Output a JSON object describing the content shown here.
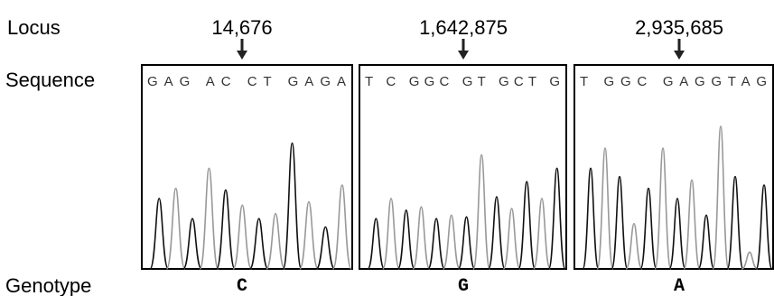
{
  "labels": {
    "locus": "Locus",
    "sequence": "Sequence",
    "genotype": "Genotype"
  },
  "panels": [
    {
      "locus": "14,676",
      "sequence": "GAG AC CT GAGA",
      "genotype": "C"
    },
    {
      "locus": "1,642,875",
      "sequence": "T C GGC GT GCT G",
      "genotype": "G"
    },
    {
      "locus": "2,935,685",
      "sequence": "T GGC GAGGTAG",
      "genotype": "A"
    }
  ]
}
